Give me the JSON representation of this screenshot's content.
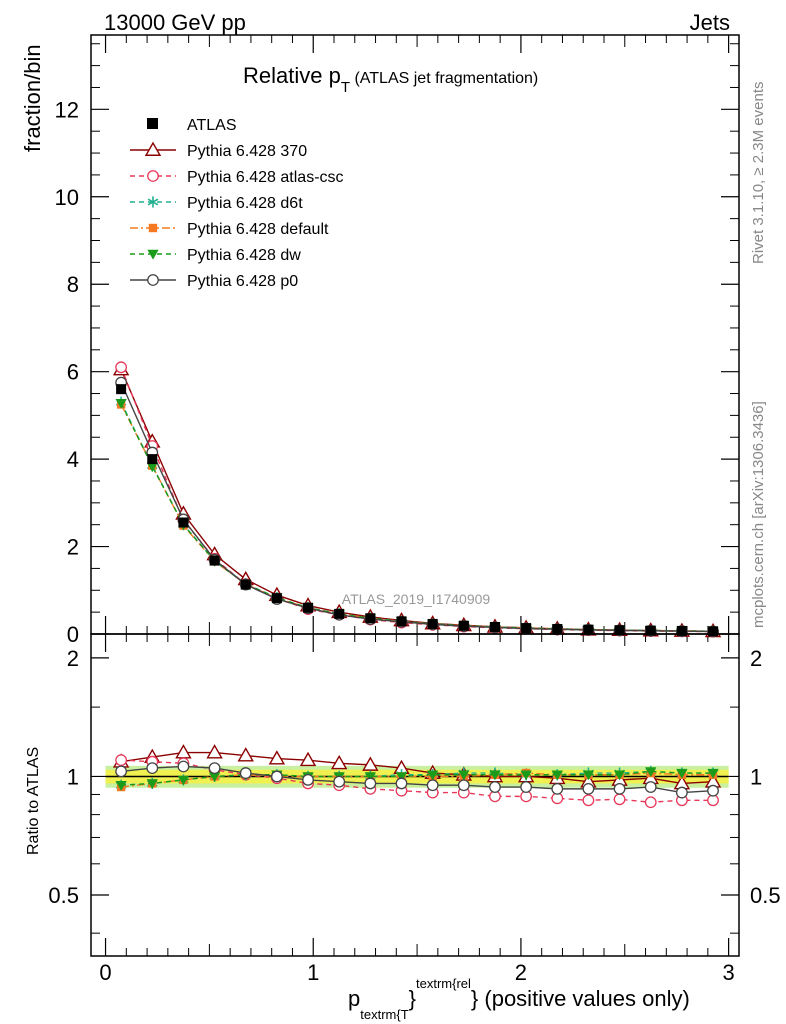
{
  "header": {
    "left": "13000 GeV pp",
    "right": "Jets"
  },
  "side": {
    "rivet": "Rivet 3.1.10, ≥ 2.3M events",
    "mcplots": "mcplots.cern.ch [arXiv:1306.3436]"
  },
  "chart_data": {
    "type": "line",
    "title_main": "Relative p",
    "title_sub": "T",
    "title_rest": " (ATLAS jet fragmentation)",
    "ylabel": "fraction/bin",
    "ratio_ylabel": "Ratio to ATLAS",
    "xlabel_p": "p",
    "xlabel_sub": "textrm{T",
    "xlabel_brace": "}",
    "xlabel_sup": "textrm{rel",
    "xlabel_rest": "} (positive values only)",
    "watermark": "ATLAS_2019_I1740909",
    "xlim": [
      -0.07,
      3.05
    ],
    "ylim": [
      0,
      13.7
    ],
    "ratio_ylim": [
      0.35,
      2.3
    ],
    "ratio_scale": "log",
    "x_ticks": [
      "0",
      "1",
      "2",
      "3"
    ],
    "y_ticks": [
      "0",
      "2",
      "4",
      "6",
      "8",
      "10",
      "12"
    ],
    "ratio_ticks": [
      "0.5",
      "1",
      "2"
    ],
    "ratio_ticks_right": [
      "0.5",
      "1",
      "2"
    ],
    "x": [
      0.075,
      0.225,
      0.375,
      0.525,
      0.675,
      0.825,
      0.975,
      1.125,
      1.275,
      1.425,
      1.575,
      1.725,
      1.875,
      2.025,
      2.175,
      2.325,
      2.475,
      2.625,
      2.775,
      2.925
    ],
    "data": {
      "name": "ATLAS",
      "values": [
        5.6,
        4.0,
        2.55,
        1.68,
        1.13,
        0.82,
        0.6,
        0.46,
        0.36,
        0.29,
        0.23,
        0.19,
        0.16,
        0.135,
        0.115,
        0.1,
        0.088,
        0.078,
        0.07,
        0.062
      ],
      "color": "#000000"
    },
    "series": [
      {
        "name": "Pythia 6.428 370",
        "color": "#8b0000",
        "dash": "",
        "marker": "triangle-open",
        "values": [
          6.05,
          4.4,
          2.75,
          1.82,
          1.25,
          0.89,
          0.65,
          0.5,
          0.39,
          0.31,
          0.24,
          0.2,
          0.165,
          0.14,
          0.118,
          0.1,
          0.09,
          0.08,
          0.07,
          0.062
        ],
        "ratio": [
          1.09,
          1.12,
          1.15,
          1.15,
          1.13,
          1.11,
          1.1,
          1.08,
          1.07,
          1.05,
          1.02,
          1.01,
          1.0,
          1.0,
          0.99,
          0.97,
          0.98,
          0.99,
          0.96,
          0.97
        ]
      },
      {
        "name": "Pythia 6.428 atlas-csc",
        "color": "#e8385a",
        "dash": "5,4",
        "marker": "circle-open",
        "values": [
          6.1,
          4.3,
          2.6,
          1.72,
          1.14,
          0.81,
          0.57,
          0.44,
          0.33,
          0.26,
          0.21,
          0.17,
          0.14,
          0.12,
          0.1,
          0.087,
          0.077,
          0.067,
          0.061,
          0.054
        ],
        "ratio": [
          1.1,
          1.09,
          1.08,
          1.04,
          1.01,
          0.99,
          0.96,
          0.95,
          0.93,
          0.92,
          0.91,
          0.91,
          0.89,
          0.89,
          0.88,
          0.87,
          0.875,
          0.86,
          0.87,
          0.87
        ]
      },
      {
        "name": "Pythia 6.428 d6t",
        "color": "#20b090",
        "dash": "5,4",
        "marker": "star",
        "values": [
          5.3,
          3.85,
          2.5,
          1.68,
          1.15,
          0.83,
          0.6,
          0.46,
          0.36,
          0.29,
          0.23,
          0.19,
          0.16,
          0.136,
          0.115,
          0.1,
          0.089,
          0.079,
          0.071,
          0.063
        ],
        "ratio": [
          0.95,
          0.96,
          0.98,
          1.0,
          1.01,
          1.01,
          1.0,
          1.0,
          1.0,
          1.01,
          1.01,
          1.02,
          1.02,
          1.01,
          1.01,
          1.02,
          1.02,
          1.03,
          1.02,
          1.02
        ]
      },
      {
        "name": "Pythia 6.428 default",
        "color": "#f47920",
        "dash": "8,3,2,3",
        "marker": "square",
        "values": [
          5.25,
          3.85,
          2.48,
          1.66,
          1.14,
          0.82,
          0.6,
          0.46,
          0.36,
          0.29,
          0.23,
          0.19,
          0.16,
          0.137,
          0.116,
          0.101,
          0.089,
          0.079,
          0.071,
          0.063
        ],
        "ratio": [
          0.94,
          0.96,
          0.98,
          1.0,
          1.01,
          1.0,
          1.0,
          1.0,
          1.0,
          1.0,
          1.0,
          1.0,
          1.01,
          1.02,
          1.01,
          1.01,
          1.01,
          1.02,
          1.01,
          1.01
        ]
      },
      {
        "name": "Pythia 6.428 dw",
        "color": "#1a9c1a",
        "dash": "5,4",
        "marker": "triangle-down",
        "values": [
          5.28,
          3.83,
          2.5,
          1.67,
          1.14,
          0.83,
          0.6,
          0.46,
          0.36,
          0.29,
          0.23,
          0.19,
          0.16,
          0.136,
          0.116,
          0.1,
          0.089,
          0.08,
          0.071,
          0.063
        ],
        "ratio": [
          0.95,
          0.96,
          0.98,
          1.0,
          1.01,
          1.01,
          1.0,
          1.0,
          1.0,
          1.0,
          1.01,
          1.01,
          1.01,
          1.01,
          1.01,
          1.01,
          1.01,
          1.03,
          1.02,
          1.02
        ]
      },
      {
        "name": "Pythia 6.428 p0",
        "color": "#444444",
        "dash": "",
        "marker": "circle-open",
        "values": [
          5.75,
          4.15,
          2.62,
          1.7,
          1.13,
          0.8,
          0.59,
          0.44,
          0.34,
          0.28,
          0.22,
          0.18,
          0.15,
          0.125,
          0.107,
          0.093,
          0.082,
          0.073,
          0.064,
          0.057
        ],
        "ratio": [
          1.03,
          1.05,
          1.06,
          1.05,
          1.02,
          1.0,
          0.98,
          0.97,
          0.96,
          0.96,
          0.95,
          0.95,
          0.94,
          0.94,
          0.93,
          0.93,
          0.93,
          0.94,
          0.91,
          0.92
        ]
      }
    ],
    "band_colors": {
      "inner": "#f0f050",
      "outer": "#c8f0a0"
    },
    "ratio_band_halfwidth": 0.04
  }
}
